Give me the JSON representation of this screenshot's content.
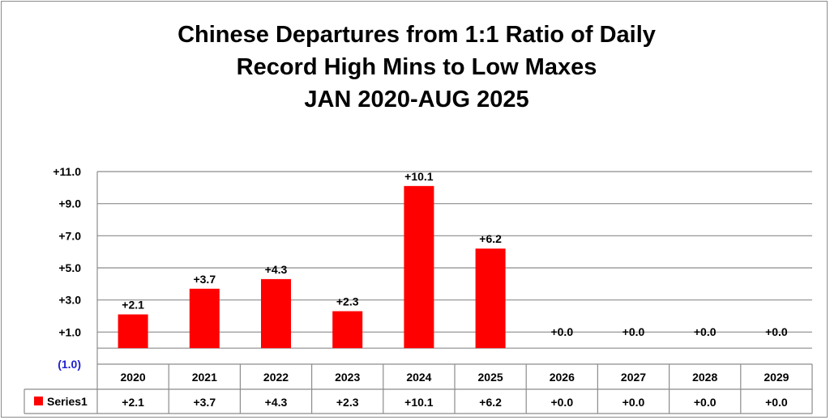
{
  "chart_data": {
    "type": "bar",
    "title_lines": [
      "Chinese Departures from 1:1 Ratio of Daily",
      "Record High Mins to Low Maxes",
      "JAN 2020-AUG 2025"
    ],
    "categories": [
      "2020",
      "2021",
      "2022",
      "2023",
      "2024",
      "2025",
      "2026",
      "2027",
      "2028",
      "2029"
    ],
    "series": [
      {
        "name": "Series1",
        "values": [
          2.1,
          3.7,
          4.3,
          2.3,
          10.1,
          6.2,
          0.0,
          0.0,
          0.0,
          0.0
        ],
        "labels": [
          "+2.1",
          "+3.7",
          "+4.3",
          "+2.3",
          "+10.1",
          "+6.2",
          "+0.0",
          "+0.0",
          "+0.0",
          "+0.0"
        ],
        "color": "#ff0000"
      }
    ],
    "y_ticks": [
      {
        "value": 11,
        "label": "+11.0"
      },
      {
        "value": 9,
        "label": "+9.0"
      },
      {
        "value": 7,
        "label": "+7.0"
      },
      {
        "value": 5,
        "label": "+5.0"
      },
      {
        "value": 3,
        "label": "+3.0"
      },
      {
        "value": 1,
        "label": "+1.0"
      },
      {
        "value": -1,
        "label": "(1.0)"
      }
    ],
    "ylim": [
      -1,
      11
    ],
    "grid": true,
    "data_table": true,
    "colors": {
      "bar": "#ff0000",
      "negative_tick": "#1f1fd0",
      "grid": "#8c8c8c"
    }
  }
}
